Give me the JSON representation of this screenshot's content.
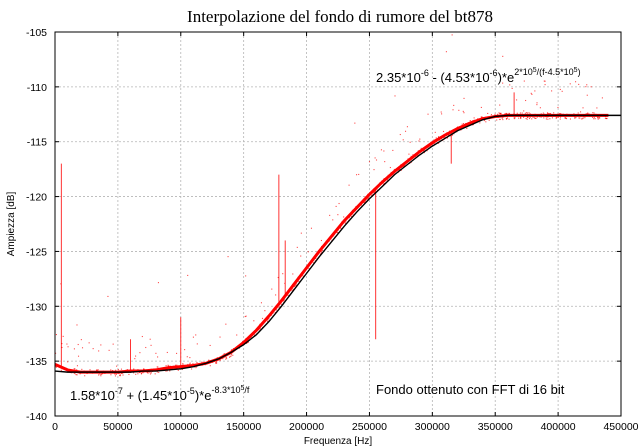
{
  "chart_data": {
    "type": "scatter",
    "title": "Interpolazione del fondo di rumore del bt878",
    "xlabel": "Frequenza [Hz]",
    "ylabel": "Ampiezza [dB]",
    "xlim": [
      0,
      450000
    ],
    "ylim": [
      -140,
      -105
    ],
    "x_ticks": [
      0,
      50000,
      100000,
      150000,
      200000,
      250000,
      300000,
      350000,
      400000,
      450000
    ],
    "y_ticks": [
      -140,
      -135,
      -130,
      -125,
      -120,
      -115,
      -110,
      -105
    ],
    "x_tick_labels": [
      "0",
      "50000",
      "100000",
      "150000",
      "200000",
      "250000",
      "300000",
      "350000",
      "400000",
      "450000"
    ],
    "y_tick_labels": [
      "-140",
      "-135",
      "-130",
      "-125",
      "-120",
      "-115",
      "-110",
      "-105"
    ],
    "grid": true,
    "colors": {
      "noise": "#ff0000",
      "fit": "#000000"
    },
    "series": [
      {
        "kind": "noise-points",
        "x": [
          0,
          10000,
          20000,
          30000,
          40000,
          50000,
          60000,
          70000,
          80000,
          90000,
          100000,
          110000,
          120000,
          130000,
          140000,
          150000,
          160000,
          170000,
          180000,
          190000,
          200000,
          210000,
          220000,
          230000,
          240000,
          250000,
          260000,
          270000,
          280000,
          290000,
          300000,
          310000,
          320000,
          330000,
          340000,
          350000,
          360000,
          370000,
          380000,
          390000,
          400000,
          410000,
          420000,
          430000,
          440000
        ],
        "y": [
          -135.3,
          -135.8,
          -136.0,
          -136.0,
          -136.0,
          -136.0,
          -135.9,
          -135.9,
          -135.8,
          -135.6,
          -135.5,
          -135.4,
          -135.2,
          -134.8,
          -134.2,
          -133.3,
          -132.2,
          -130.9,
          -129.5,
          -128.0,
          -126.5,
          -125.0,
          -123.6,
          -122.2,
          -121.0,
          -119.8,
          -118.7,
          -117.7,
          -116.8,
          -115.9,
          -115.1,
          -114.4,
          -113.8,
          -113.3,
          -112.9,
          -112.7,
          -112.6,
          -112.6,
          -112.6,
          -112.6,
          -112.6,
          -112.6,
          -112.6,
          -112.6,
          -112.6
        ]
      },
      {
        "kind": "fit-line",
        "x": [
          0,
          10000,
          20000,
          30000,
          40000,
          50000,
          60000,
          70000,
          80000,
          90000,
          100000,
          110000,
          120000,
          130000,
          140000,
          150000,
          160000,
          170000,
          180000,
          190000,
          200000,
          210000,
          220000,
          230000,
          240000,
          250000,
          260000,
          270000,
          280000,
          290000,
          300000,
          310000,
          320000,
          330000,
          340000,
          350000,
          360000,
          370000,
          380000,
          390000,
          400000,
          410000,
          420000,
          430000,
          440000,
          450000
        ],
        "y": [
          -135.9,
          -136.0,
          -136.0,
          -136.0,
          -136.0,
          -136.0,
          -136.0,
          -135.9,
          -135.9,
          -135.8,
          -135.7,
          -135.5,
          -135.2,
          -134.8,
          -134.2,
          -133.5,
          -132.6,
          -131.4,
          -130.0,
          -128.5,
          -127.0,
          -125.5,
          -124.1,
          -122.7,
          -121.4,
          -120.2,
          -119.1,
          -118.0,
          -117.1,
          -116.2,
          -115.4,
          -114.7,
          -114.0,
          -113.5,
          -113.0,
          -112.7,
          -112.6,
          -112.6,
          -112.6,
          -112.6,
          -112.6,
          -112.6,
          -112.6,
          -112.6,
          -112.6,
          -112.6
        ]
      }
    ],
    "spikes": [
      {
        "x": 5000,
        "y": -117
      },
      {
        "x": 60000,
        "y": -133
      },
      {
        "x": 100000,
        "y": -131
      },
      {
        "x": 178000,
        "y": -118
      },
      {
        "x": 183000,
        "y": -124
      },
      {
        "x": 255000,
        "y": -133
      },
      {
        "x": 315000,
        "y": -117
      },
      {
        "x": 365000,
        "y": -110.5
      }
    ],
    "annotations": [
      {
        "text": "2.35*10-6 - (4.53*10-6)*e2*105/(f-4.5*105)",
        "at": "top-right"
      },
      {
        "text": "1.58*10-7 + (1.45*10-5)*e-8.3*105/f",
        "at": "bottom-left"
      },
      {
        "text": "Fondo ottenuto con FFT di 16 bit",
        "at": "bottom-right"
      }
    ]
  }
}
